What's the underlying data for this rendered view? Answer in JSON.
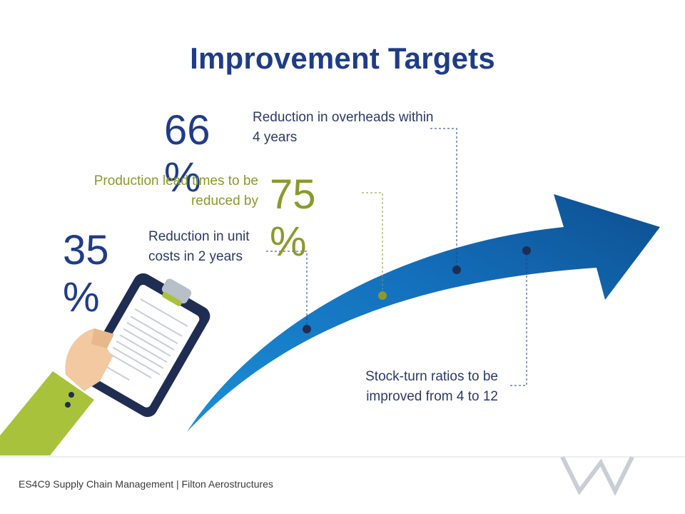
{
  "slide": {
    "title": "Improvement Targets",
    "footer": "ES4C9 Supply Chain Management | Filton Aerostructures"
  },
  "targets": [
    {
      "value": "66 %",
      "label": "Reduction in overheads within 4 years",
      "color": "#1f3c88"
    },
    {
      "value": "75 %",
      "label": "Production lead times to be reduced by",
      "color": "#8a9a2b"
    },
    {
      "value": "35 %",
      "label": "Reduction in unit costs in 2 years",
      "color": "#1f3c88"
    },
    {
      "value": "",
      "label": "Stock-turn ratios to be improved from 4 to 12",
      "color": "#1f3c88"
    }
  ],
  "colors": {
    "title": "#1f3c88",
    "arrow_light": "#1b8fd6",
    "arrow_dark": "#0d4f8f",
    "marker_navy": "#1f2d52",
    "marker_olive": "#8a9a2b",
    "sleeve": "#a9c23b"
  }
}
